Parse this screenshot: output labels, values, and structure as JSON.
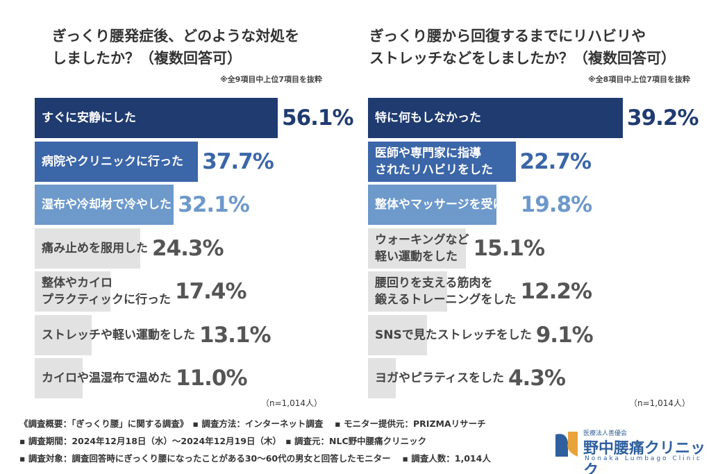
{
  "chart_data": [
    {
      "type": "hbar",
      "title": "ぎっくり腰発症後、どのような対処を\nしましたか？（複数回答可）",
      "note": "※全9項目中上位7項目を抜粋",
      "sample": "（n=1,014人）",
      "categories": [
        "すぐに安静にした",
        "病院やクリニックに行った",
        "湿布や冷却材で冷やした",
        "痛み止めを服用した",
        "整体やカイロ\nプラクティックに行った",
        "ストレッチや軽い運動をした",
        "カイロや温湿布で温めた"
      ],
      "values": [
        56.1,
        37.7,
        32.1,
        24.3,
        17.4,
        13.1,
        11.0
      ],
      "value_labels": [
        "56.1%",
        "37.7%",
        "32.1%",
        "24.3%",
        "17.4%",
        "13.1%",
        "11.0%"
      ],
      "colors": [
        "#1f3b70",
        "#3b66a8",
        "#6d99cb",
        "#e2e2e2",
        "#e2e2e2",
        "#e2e2e2",
        "#e2e2e2"
      ],
      "value_colors": [
        "#1f3b70",
        "#3b66a8",
        "#6d99cb",
        "#555555",
        "#555555",
        "#555555",
        "#555555"
      ]
    },
    {
      "type": "hbar",
      "title": "ぎっくり腰から回復するまでにリハビリや\nストレッチなどをしましたか？（複数回答可）",
      "note": "※全8項目中上位7項目を抜粋",
      "sample": "（n=1,014人）",
      "categories": [
        "特に何もしなかった",
        "医師や専門家に指導\nされたリハビリをした",
        "整体やマッサージを受けた",
        "ウォーキングなど\n軽い運動をした",
        "腰回りを支える筋肉を\n鍛えるトレーニングをした",
        "SNSで見たストレッチをした",
        "ヨガやピラティスをした"
      ],
      "values": [
        39.2,
        22.7,
        19.8,
        15.1,
        12.2,
        9.1,
        4.3
      ],
      "value_labels": [
        "39.2%",
        "22.7%",
        "19.8%",
        "15.1%",
        "12.2%",
        "9.1%",
        "4.3%"
      ],
      "colors": [
        "#1f3b70",
        "#3b66a8",
        "#6d99cb",
        "#e2e2e2",
        "#e2e2e2",
        "#e2e2e2",
        "#e2e2e2"
      ],
      "value_colors": [
        "#1f3b70",
        "#3b66a8",
        "#6d99cb",
        "#555555",
        "#555555",
        "#555555",
        "#555555"
      ]
    }
  ],
  "footer": [
    "《調査概要：「ぎっくり腰」に関する調査》　▪ 調査方法：インターネット調査　 ▪ モニター提供元：PRIZMAリサーチ",
    "▪ 調査期間：2024年12月18日（水）～2024年12月19日（木）　▪ 調査元：NLC野中腰痛クリニック",
    "▪ 調査対象：調査回答時にぎっくり腰になったことがある30～60代の男女と回答したモニター　 ▪ 調査人数：1,014人"
  ],
  "logo": {
    "org": "医療法人善優会",
    "name": "野中腰痛クリニック",
    "en": "Nonaka Lumbago Clinic"
  }
}
